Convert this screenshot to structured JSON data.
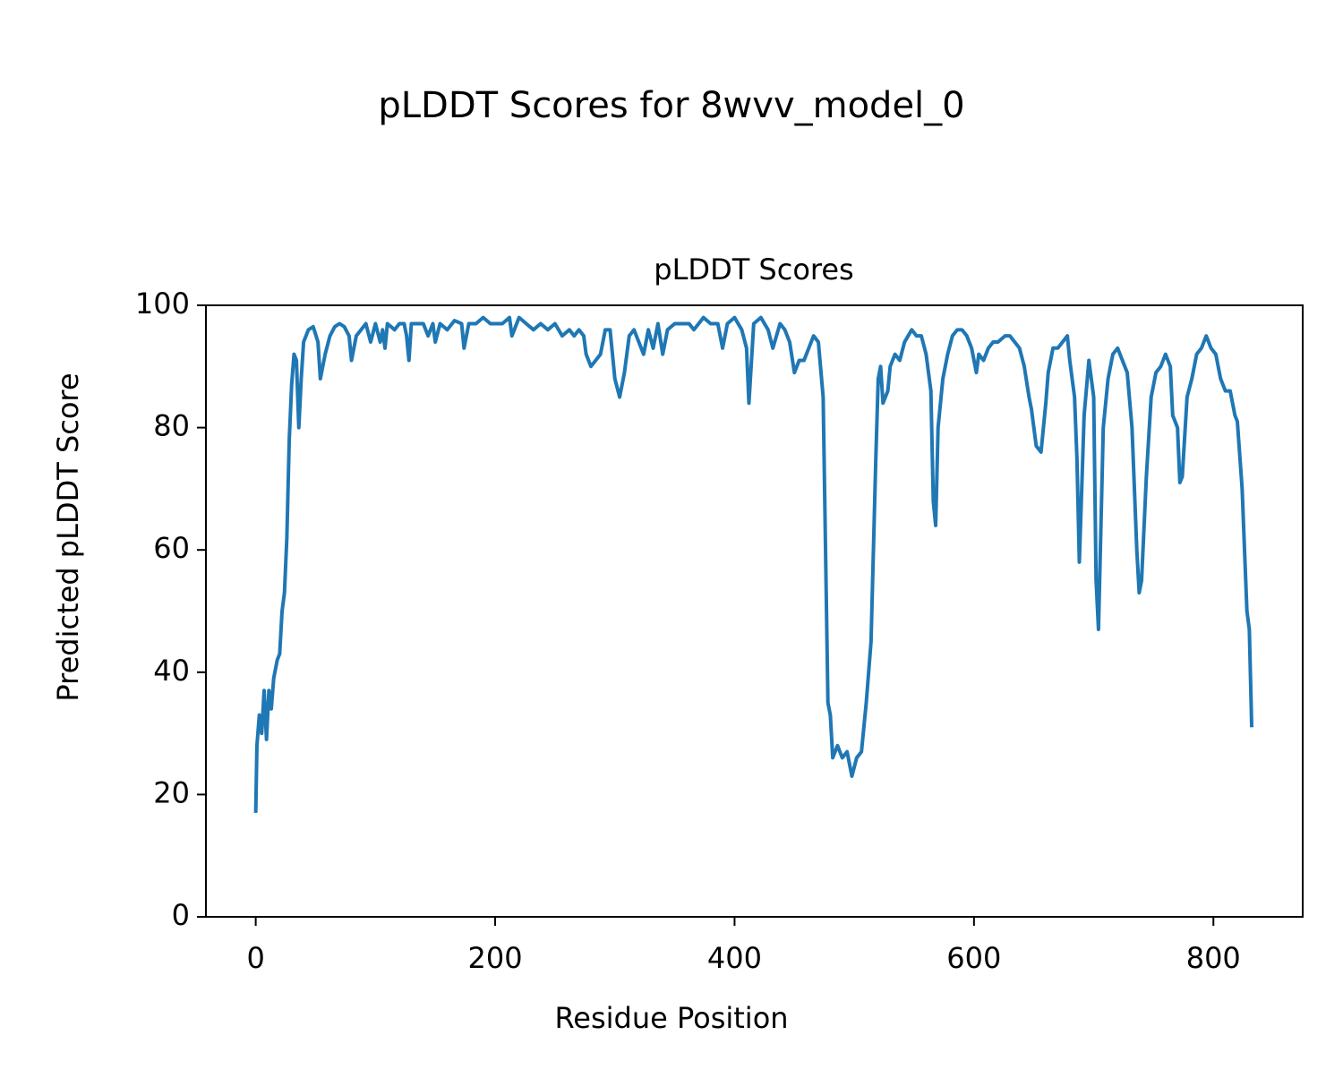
{
  "chart_data": {
    "type": "line",
    "title": "pLDDT Scores for 8wvv_model_0",
    "subtitle": "pLDDT Scores",
    "x_label": "Residue Position",
    "y_label": "Predicted pLDDT Score",
    "xlim": [
      -41.6,
      874.6
    ],
    "ylim": [
      0,
      100
    ],
    "xticks": [
      0,
      200,
      400,
      600,
      800
    ],
    "yticks": [
      0,
      20,
      40,
      60,
      80,
      100
    ],
    "grid": false,
    "x": [
      0,
      1,
      3,
      5,
      7,
      9,
      11,
      13,
      15,
      18,
      20,
      22,
      24,
      26,
      28,
      30,
      32,
      34,
      36,
      38,
      40,
      44,
      48,
      52,
      54,
      58,
      62,
      66,
      70,
      74,
      78,
      80,
      84,
      88,
      92,
      96,
      100,
      104,
      106,
      108,
      110,
      116,
      120,
      124,
      126,
      128,
      130,
      136,
      140,
      144,
      148,
      150,
      154,
      160,
      166,
      172,
      174,
      178,
      184,
      190,
      196,
      200,
      206,
      212,
      214,
      220,
      226,
      232,
      238,
      244,
      250,
      256,
      262,
      266,
      270,
      274,
      276,
      280,
      284,
      288,
      292,
      296,
      300,
      304,
      308,
      312,
      316,
      320,
      324,
      328,
      332,
      336,
      340,
      344,
      350,
      356,
      362,
      366,
      370,
      374,
      380,
      386,
      390,
      394,
      400,
      406,
      410,
      412,
      416,
      422,
      428,
      432,
      438,
      442,
      446,
      450,
      454,
      458,
      462,
      466,
      470,
      474,
      476,
      478,
      480,
      482,
      486,
      490,
      494,
      498,
      502,
      506,
      510,
      514,
      518,
      520,
      522,
      524,
      528,
      530,
      534,
      538,
      542,
      548,
      552,
      556,
      560,
      564,
      566,
      568,
      570,
      574,
      578,
      582,
      586,
      590,
      594,
      598,
      602,
      604,
      608,
      612,
      616,
      620,
      626,
      630,
      634,
      638,
      642,
      646,
      648,
      652,
      656,
      660,
      662,
      666,
      670,
      674,
      678,
      680,
      684,
      686,
      688,
      692,
      696,
      700,
      702,
      704,
      708,
      712,
      716,
      720,
      724,
      728,
      732,
      736,
      738,
      740,
      744,
      748,
      752,
      756,
      760,
      764,
      766,
      770,
      772,
      774,
      778,
      782,
      786,
      790,
      794,
      798,
      802,
      806,
      810,
      814,
      818,
      820,
      824,
      826,
      828,
      830,
      832
    ],
    "series": [
      {
        "name": "pLDDT",
        "color": "#1f77b4",
        "values": [
          17,
          28,
          33,
          30,
          37,
          29,
          37,
          34,
          39,
          42,
          43,
          50,
          53,
          62,
          78,
          87,
          92,
          91,
          80,
          88,
          94,
          96,
          96.5,
          94,
          88,
          92,
          95,
          96.5,
          97,
          96.5,
          95,
          91,
          95,
          96,
          97,
          94,
          97,
          94,
          96,
          93,
          97,
          96,
          97,
          97,
          95,
          91,
          97,
          97,
          97,
          95,
          97,
          94,
          97,
          96,
          97.5,
          97,
          93,
          97,
          97,
          98,
          97,
          97,
          97,
          98,
          95,
          98,
          97,
          96,
          97,
          96,
          97,
          95,
          96,
          95,
          96,
          95,
          92,
          90,
          91,
          92,
          96,
          96,
          88,
          85,
          89,
          95,
          96,
          94,
          92,
          96,
          93,
          97,
          92,
          96,
          97,
          97,
          97,
          96,
          97,
          98,
          97,
          97,
          93,
          97,
          98,
          96,
          93,
          84,
          97,
          98,
          96,
          93,
          97,
          96,
          94,
          89,
          91,
          91,
          93,
          95,
          94,
          85,
          60,
          35,
          33,
          26,
          28,
          26,
          27,
          23,
          26,
          27,
          35,
          45,
          75,
          88,
          90,
          84,
          86,
          90,
          92,
          91,
          94,
          96,
          95,
          95,
          92,
          86,
          68,
          64,
          80,
          88,
          92,
          95,
          96,
          96,
          95,
          93,
          89,
          92,
          91,
          93,
          94,
          94,
          95,
          95,
          94,
          93,
          90,
          85,
          83,
          77,
          76,
          84,
          89,
          93,
          93,
          94,
          95,
          91,
          85,
          75,
          58,
          82,
          91,
          85,
          55,
          47,
          80,
          88,
          92,
          93,
          91,
          89,
          80,
          60,
          53,
          55,
          72,
          85,
          89,
          90,
          92,
          90,
          82,
          80,
          71,
          72,
          85,
          88,
          92,
          93,
          95,
          93,
          92,
          88,
          86,
          86,
          82,
          81,
          70,
          60,
          50,
          47,
          31
        ]
      }
    ]
  }
}
